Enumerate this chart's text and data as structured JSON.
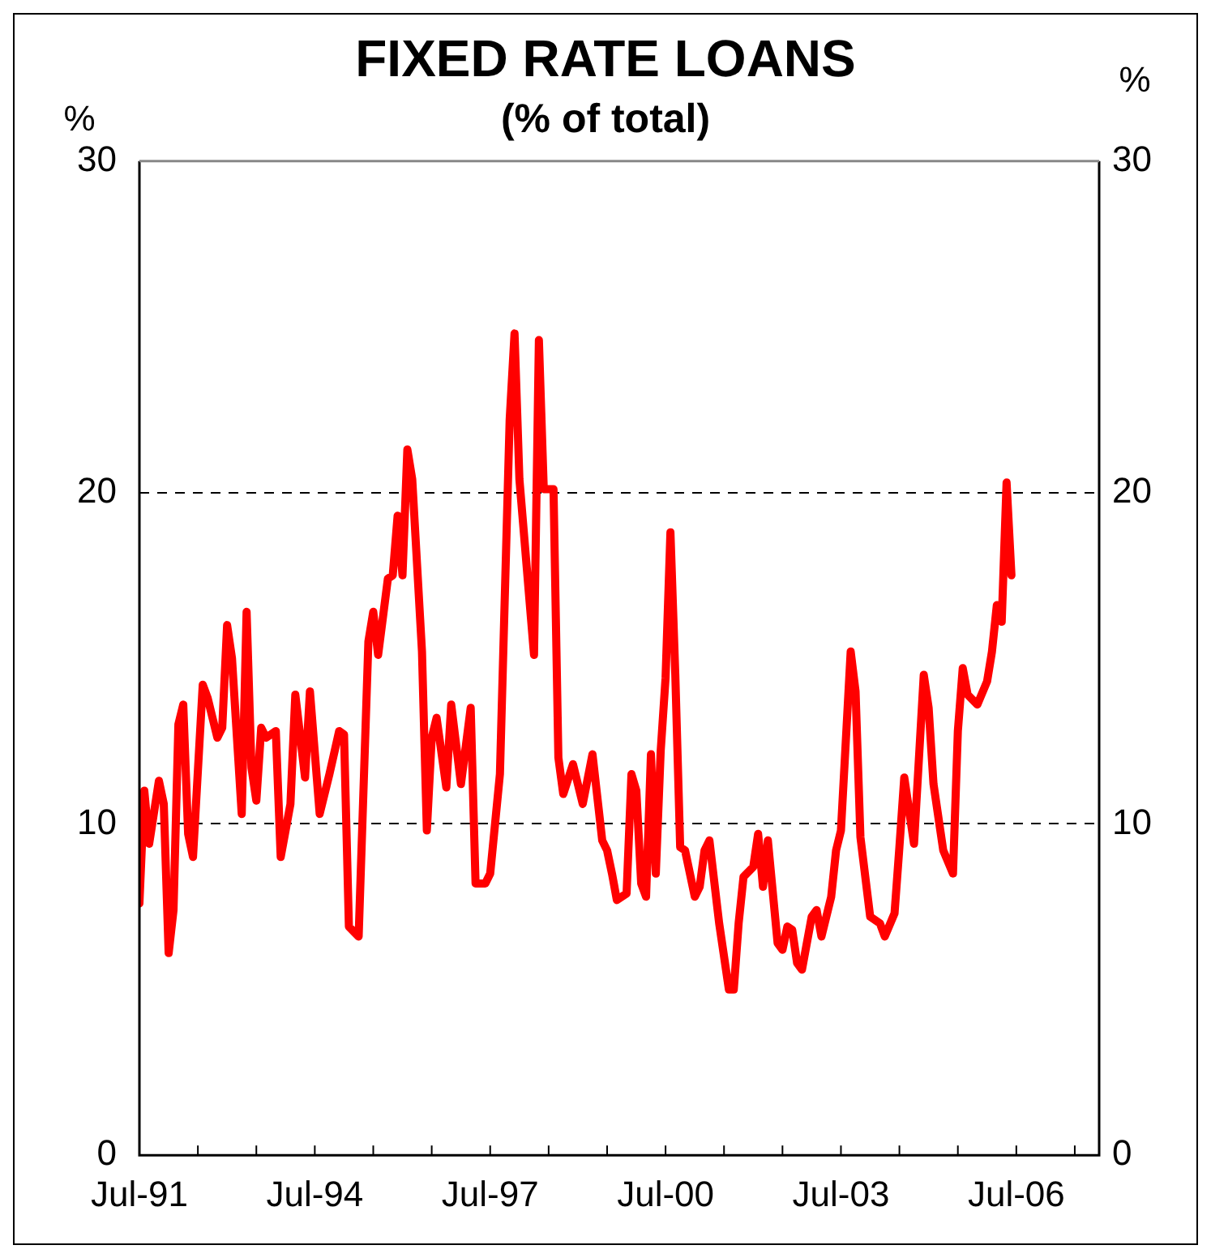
{
  "chart_data": {
    "type": "line",
    "title": "FIXED RATE LOANS",
    "subtitle": "(% of total)",
    "ylabel": "%",
    "y2label": "%",
    "xlim": [
      "1991-07",
      "2007-12"
    ],
    "xticks": [
      {
        "value": "1991-07",
        "label": "Jul-91"
      },
      {
        "value": "1992-07",
        "label": null
      },
      {
        "value": "1993-07",
        "label": null
      },
      {
        "value": "1994-07",
        "label": "Jul-94"
      },
      {
        "value": "1995-07",
        "label": null
      },
      {
        "value": "1996-07",
        "label": null
      },
      {
        "value": "1997-07",
        "label": "Jul-97"
      },
      {
        "value": "1998-07",
        "label": null
      },
      {
        "value": "1999-07",
        "label": null
      },
      {
        "value": "2000-07",
        "label": "Jul-00"
      },
      {
        "value": "2001-07",
        "label": null
      },
      {
        "value": "2002-07",
        "label": null
      },
      {
        "value": "2003-07",
        "label": "Jul-03"
      },
      {
        "value": "2004-07",
        "label": null
      },
      {
        "value": "2005-07",
        "label": null
      },
      {
        "value": "2006-07",
        "label": "Jul-06"
      },
      {
        "value": "2007-07",
        "label": null
      }
    ],
    "ylim": [
      0,
      30
    ],
    "yticks": [
      0,
      10,
      20,
      30
    ],
    "y2lim": [
      0,
      30
    ],
    "y2ticks": [
      0,
      10,
      20,
      30
    ],
    "grid": "y",
    "legend": false,
    "marker": "none",
    "line_style": "solid",
    "series": [
      {
        "color": "#ff0000",
        "x": [
          "1991-07",
          "1991-08",
          "1991-09",
          "1991-11",
          "1991-12",
          "1992-01",
          "1992-02",
          "1992-03",
          "1992-04",
          "1992-05",
          "1992-06",
          "1992-08",
          "1992-09",
          "1992-11",
          "1992-12",
          "1993-01",
          "1993-02",
          "1993-04",
          "1993-05",
          "1993-06",
          "1993-07",
          "1993-08",
          "1993-09",
          "1993-11",
          "1993-12",
          "1994-02",
          "1994-03",
          "1994-05",
          "1994-06",
          "1994-08",
          "1994-10",
          "1994-12",
          "1995-01",
          "1995-02",
          "1995-04",
          "1995-06",
          "1995-07",
          "1995-08",
          "1995-10",
          "1995-11",
          "1995-12",
          "1996-01",
          "1996-02",
          "1996-03",
          "1996-05",
          "1996-06",
          "1996-07",
          "1996-08",
          "1996-10",
          "1996-11",
          "1997-01",
          "1997-03",
          "1997-04",
          "1997-06",
          "1997-07",
          "1997-09",
          "1997-11",
          "1997-12",
          "1998-01",
          "1998-04",
          "1998-05",
          "1998-06",
          "1998-08",
          "1998-09",
          "1998-10",
          "1998-12",
          "1999-02",
          "1999-04",
          "1999-06",
          "1999-07",
          "1999-08",
          "1999-09",
          "1999-11",
          "1999-12",
          "2000-01",
          "2000-02",
          "2000-03",
          "2000-04",
          "2000-05",
          "2000-06",
          "2000-07",
          "2000-08",
          "2000-09",
          "2000-10",
          "2000-11",
          "2001-01",
          "2001-02",
          "2001-03",
          "2001-04",
          "2001-06",
          "2001-08",
          "2001-09",
          "2001-10",
          "2001-11",
          "2002-01",
          "2002-02",
          "2002-03",
          "2002-04",
          "2002-06",
          "2002-07",
          "2002-08",
          "2002-09",
          "2002-10",
          "2002-11",
          "2003-01",
          "2003-02",
          "2003-03",
          "2003-05",
          "2003-06",
          "2003-07",
          "2003-09",
          "2003-10",
          "2003-11",
          "2004-01",
          "2004-03",
          "2004-04",
          "2004-06",
          "2004-07",
          "2004-08",
          "2004-10",
          "2004-12",
          "2005-01",
          "2005-02",
          "2005-04",
          "2005-06",
          "2005-07",
          "2005-08",
          "2005-09",
          "2005-11",
          "2006-01",
          "2006-02",
          "2006-03",
          "2006-04",
          "2006-05",
          "2006-06"
        ],
        "values": [
          7.6,
          11.0,
          9.4,
          11.3,
          10.6,
          6.1,
          7.4,
          13.0,
          13.6,
          9.7,
          9.0,
          14.2,
          13.8,
          12.6,
          12.9,
          16.0,
          15.0,
          10.3,
          16.4,
          11.7,
          10.7,
          12.9,
          12.6,
          12.8,
          9.0,
          10.6,
          13.9,
          11.4,
          14.0,
          10.3,
          11.5,
          12.8,
          12.7,
          6.9,
          6.6,
          15.5,
          16.4,
          15.1,
          17.4,
          17.5,
          19.3,
          17.5,
          21.3,
          20.4,
          15.2,
          9.8,
          12.6,
          13.2,
          11.1,
          13.6,
          11.2,
          13.5,
          8.2,
          8.2,
          8.5,
          11.5,
          22.2,
          24.8,
          20.4,
          15.1,
          24.6,
          20.1,
          20.1,
          12.0,
          10.9,
          11.8,
          10.6,
          12.1,
          9.5,
          9.2,
          8.5,
          7.7,
          7.9,
          11.5,
          11.0,
          8.2,
          7.8,
          12.1,
          8.5,
          12.2,
          14.4,
          18.8,
          14.5,
          9.3,
          9.2,
          7.8,
          8.1,
          9.2,
          9.5,
          7.0,
          5.0,
          5.0,
          7.0,
          8.4,
          8.7,
          9.7,
          8.1,
          9.5,
          6.4,
          6.2,
          6.9,
          6.8,
          5.8,
          5.6,
          7.2,
          7.4,
          6.6,
          7.8,
          9.2,
          9.8,
          15.2,
          14.0,
          9.6,
          7.2,
          7.0,
          6.6,
          7.3,
          9.3,
          11.4,
          9.4,
          14.5,
          13.5,
          11.2,
          9.2,
          8.5,
          12.8,
          14.7,
          13.9,
          13.6,
          14.3,
          15.2,
          16.6,
          16.1,
          20.3,
          17.5
        ]
      }
    ]
  }
}
